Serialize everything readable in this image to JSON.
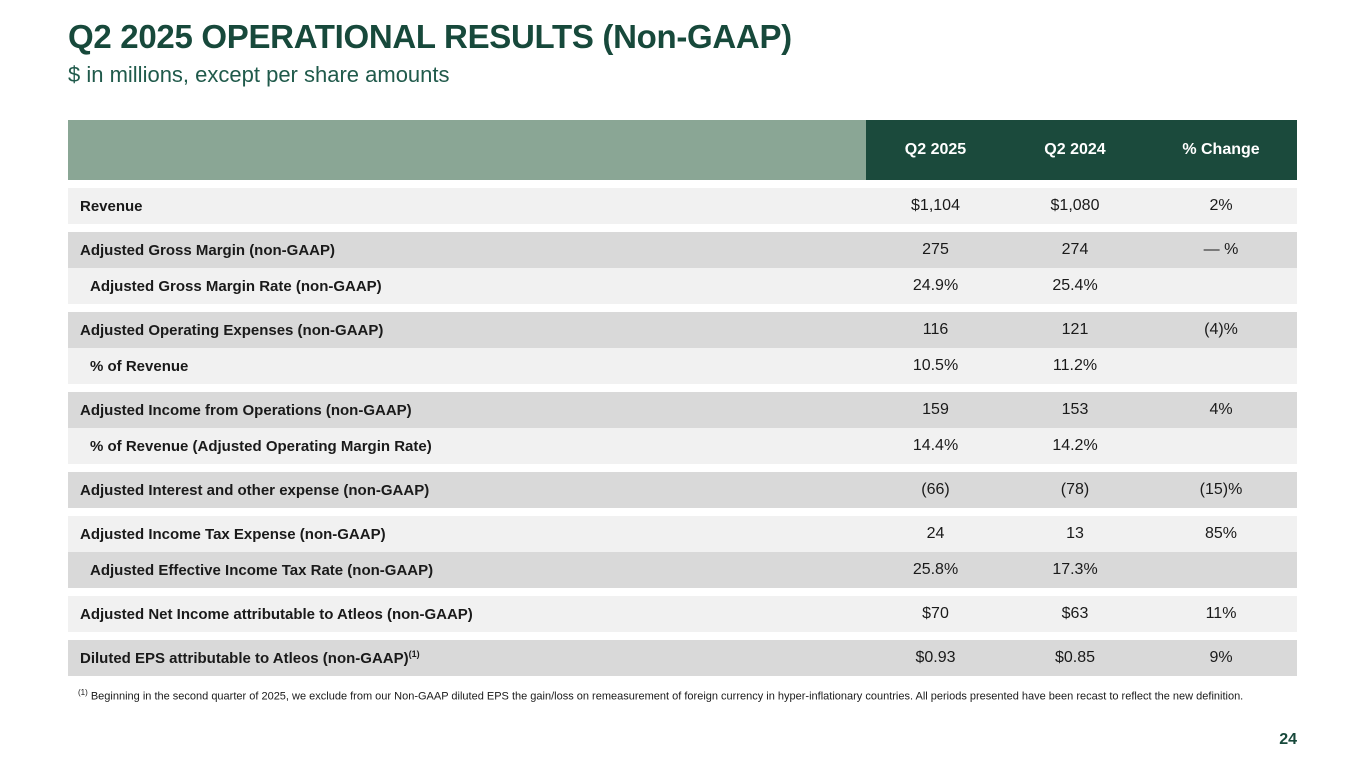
{
  "slide": {
    "title": "Q2 2025 OPERATIONAL RESULTS (Non-GAAP)",
    "subtitle": "$ in millions, except per share amounts",
    "page_number": "24",
    "footnote": {
      "marker": "(1)",
      "text": " Beginning in the second quarter of 2025, we exclude from our Non-GAAP diluted EPS the gain/loss on remeasurement of foreign currency in hyper-inflationary countries. All periods presented have been recast to reflect the new definition."
    }
  },
  "colors": {
    "title_green": "#17493B",
    "subtitle_green": "#205A4B",
    "header_dark_green": "#1B4A3C",
    "header_sage": "#8AA695",
    "row_light": "#F1F1F1",
    "row_dark": "#D9D9D9",
    "text": "#1A1A1A"
  },
  "table": {
    "columns": [
      "Q2 2025",
      "Q2 2024",
      "% Change"
    ],
    "rows": [
      {
        "label": "Revenue",
        "indent": false,
        "values": [
          "$1,104",
          "$1,080",
          "2%"
        ]
      },
      {
        "label": "Adjusted Gross Margin (non-GAAP)",
        "indent": false,
        "values": [
          "275",
          "274",
          "— %"
        ]
      },
      {
        "label": "Adjusted Gross Margin Rate (non-GAAP)",
        "indent": true,
        "values": [
          "24.9%",
          "25.4%",
          ""
        ]
      },
      {
        "label": "Adjusted Operating Expenses (non-GAAP)",
        "indent": false,
        "values": [
          "116",
          "121",
          "(4)%"
        ]
      },
      {
        "label": "% of Revenue",
        "indent": true,
        "values": [
          "10.5%",
          "11.2%",
          ""
        ]
      },
      {
        "label": "Adjusted Income from Operations (non-GAAP)",
        "indent": false,
        "values": [
          "159",
          "153",
          "4%"
        ]
      },
      {
        "label": "% of Revenue (Adjusted Operating Margin Rate)",
        "indent": true,
        "values": [
          "14.4%",
          "14.2%",
          ""
        ]
      },
      {
        "label": "Adjusted Interest and other expense (non-GAAP)",
        "indent": false,
        "values": [
          "(66)",
          "(78)",
          "(15)%"
        ]
      },
      {
        "label": "Adjusted Income Tax Expense (non-GAAP)",
        "indent": false,
        "values": [
          "24",
          "13",
          "85%"
        ]
      },
      {
        "label": "Adjusted Effective Income Tax Rate (non-GAAP)",
        "indent": true,
        "values": [
          "25.8%",
          "17.3%",
          ""
        ]
      },
      {
        "label": "Adjusted Net Income attributable to Atleos (non-GAAP)",
        "indent": false,
        "values": [
          "$70",
          "$63",
          "11%"
        ]
      },
      {
        "label": "Diluted EPS attributable to Atleos (non-GAAP)",
        "label_superscript": "(1)",
        "indent": false,
        "values": [
          "$0.93",
          "$0.85",
          "9%"
        ]
      }
    ]
  }
}
